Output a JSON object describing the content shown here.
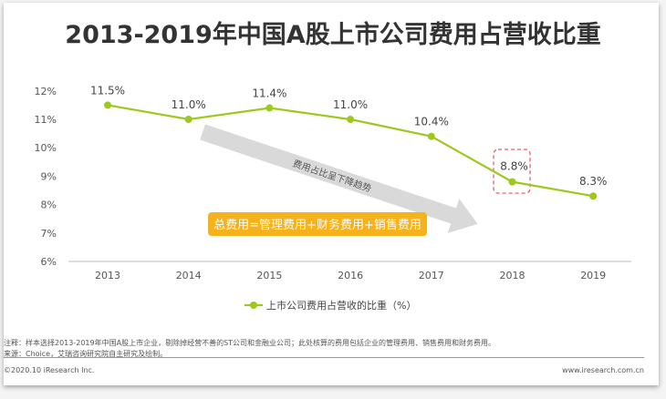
{
  "title": "2013-2019年中国A股上市公司费用占营收比重",
  "chart_data": {
    "type": "line",
    "title": "2013-2019年中国A股上市公司费用占营收比重",
    "categories": [
      "2013",
      "2014",
      "2015",
      "2016",
      "2017",
      "2018",
      "2019"
    ],
    "series": [
      {
        "name": "上市公司费用占营收的比重（%）",
        "values": [
          11.5,
          11.0,
          11.4,
          11.0,
          10.4,
          8.8,
          8.3
        ],
        "labels": [
          "11.5%",
          "11.0%",
          "11.4%",
          "11.0%",
          "10.4%",
          "8.8%",
          "8.3%"
        ],
        "color": "#9dc81e"
      }
    ],
    "yticks": [
      "6%",
      "7%",
      "8%",
      "9%",
      "10%",
      "11%",
      "12%"
    ],
    "ylim": [
      6,
      12
    ],
    "grid": false,
    "legend": "bottom",
    "annotations": {
      "trend_arrow": "费用占比呈下降趋势",
      "formula": "总费用=管理费用+财务费用+销售费用",
      "highlight": "2018"
    }
  },
  "colors": {
    "line": "#9dc81e",
    "formula_bg": "#f5b21b",
    "arrow": "#d9d9d9",
    "highlight": "#e8606a"
  },
  "footer": {
    "note": "注释：样本选择2013-2019年中国A股上市企业，剔除掉经营不善的ST公司和金融业公司；此处核算的费用包括企业的管理费用、销售费用和财务费用。",
    "source": "来源：Choice，艾瑞咨询研究院自主研究及绘制。",
    "copyright": "©2020.10 iResearch Inc.",
    "website": "www.iresearch.com.cn"
  }
}
